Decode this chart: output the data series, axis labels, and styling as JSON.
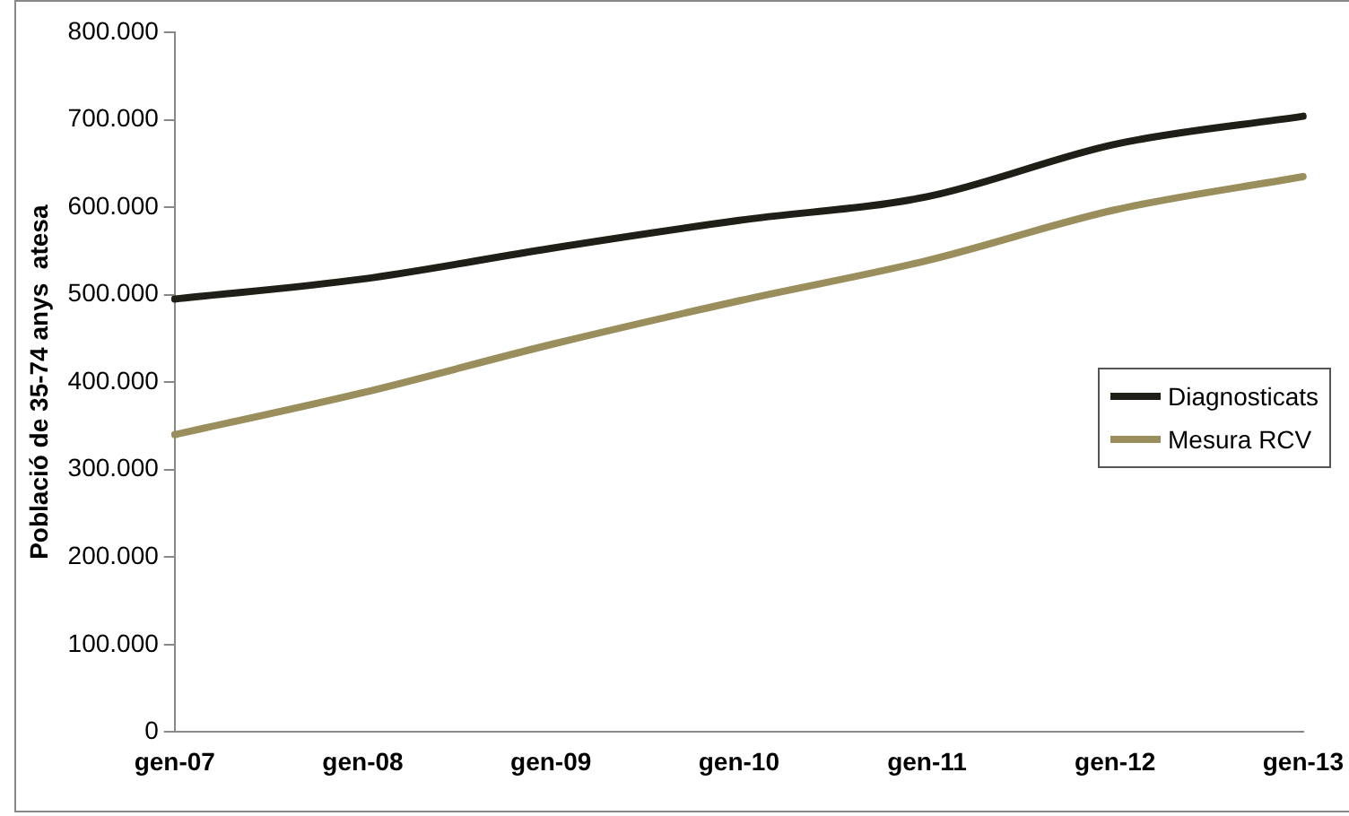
{
  "chart_data": {
    "type": "line",
    "ylabel": "Població de 35-74 anys  atesa",
    "categories": [
      "gen-07",
      "gen-08",
      "gen-09",
      "gen-10",
      "gen-11",
      "gen-12",
      "gen-13"
    ],
    "series": [
      {
        "name": "Diagnosticats",
        "color": "#1f1f17",
        "values": [
          495000,
          518000,
          553000,
          585000,
          612000,
          672000,
          704000
        ]
      },
      {
        "name": "Mesura RCV",
        "color": "#9a8f5c",
        "values": [
          340000,
          388000,
          443000,
          493000,
          539000,
          597000,
          635000
        ]
      }
    ],
    "ylim": [
      0,
      800000
    ],
    "yticks": [
      {
        "value": 0,
        "label": "0"
      },
      {
        "value": 100000,
        "label": "100.000"
      },
      {
        "value": 200000,
        "label": "200.000"
      },
      {
        "value": 300000,
        "label": "300.000"
      },
      {
        "value": 400000,
        "label": "400.000"
      },
      {
        "value": 500000,
        "label": "500.000"
      },
      {
        "value": 600000,
        "label": "600.000"
      },
      {
        "value": 700000,
        "label": "700.000"
      },
      {
        "value": 800000,
        "label": "800.000"
      }
    ],
    "grid": false,
    "legend": "right",
    "marker": "none",
    "line_style": "solid"
  }
}
